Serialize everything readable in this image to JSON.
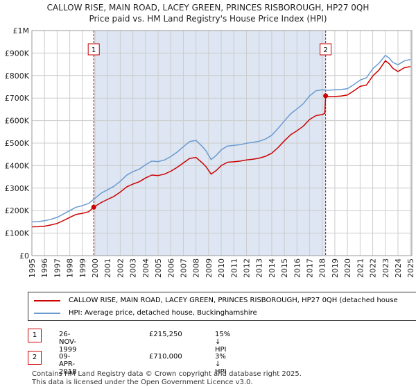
{
  "title_line1": "CALLOW RISE, MAIN ROAD, LACEY GREEN, PRINCES RISBOROUGH, HP27 0QH",
  "title_line2": "Price paid vs. HM Land Registry's House Price Index (HPI)",
  "colors": {
    "price_paid": "#cc0000",
    "hpi": "#6a9bd1",
    "shade": "#dde6f2",
    "marker_border": "#cc0000"
  },
  "legend": {
    "price_paid_label": "CALLOW RISE, MAIN ROAD, LACEY GREEN, PRINCES RISBOROUGH, HP27 0QH (detached house",
    "hpi_label": "HPI: Average price, detached house, Buckinghamshire"
  },
  "sales": [
    {
      "num": "1",
      "date": "26-NOV-1999",
      "price": "£215,250",
      "hpi_diff": "15% ↓ HPI"
    },
    {
      "num": "2",
      "date": "09-APR-2018",
      "price": "£710,000",
      "hpi_diff": "3% ↓ HPI"
    }
  ],
  "footer": {
    "line1": "Contains HM Land Registry data © Crown copyright and database right 2025.",
    "line2": "This data is licensed under the Open Government Licence v3.0."
  },
  "chart_data": {
    "type": "line",
    "title": "CALLOW RISE, MAIN ROAD, LACEY GREEN, PRINCES RISBOROUGH, HP27 0QH",
    "subtitle": "Price paid vs. HM Land Registry's House Price Index (HPI)",
    "xlabel": "",
    "ylabel": "",
    "xlim": [
      1995,
      2025.1
    ],
    "ylim": [
      0,
      1000000
    ],
    "y_ticks": [
      {
        "value": 0,
        "label": "£0"
      },
      {
        "value": 100000,
        "label": "£100K"
      },
      {
        "value": 200000,
        "label": "£200K"
      },
      {
        "value": 300000,
        "label": "£300K"
      },
      {
        "value": 400000,
        "label": "£400K"
      },
      {
        "value": 500000,
        "label": "£500K"
      },
      {
        "value": 600000,
        "label": "£600K"
      },
      {
        "value": 700000,
        "label": "£700K"
      },
      {
        "value": 800000,
        "label": "£800K"
      },
      {
        "value": 900000,
        "label": "£900K"
      },
      {
        "value": 1000000,
        "label": "£1M"
      }
    ],
    "x_ticks": [
      "1995",
      "1996",
      "1997",
      "1998",
      "1999",
      "2000",
      "2001",
      "2002",
      "2003",
      "2004",
      "2005",
      "2006",
      "2007",
      "2008",
      "2009",
      "2010",
      "2011",
      "2012",
      "2013",
      "2014",
      "2015",
      "2016",
      "2017",
      "2018",
      "2019",
      "2020",
      "2021",
      "2022",
      "2023",
      "2024",
      "2025"
    ],
    "grid": true,
    "sale_markers": [
      {
        "label": "1",
        "x": 1999.9,
        "y": 215250
      },
      {
        "label": "2",
        "x": 2018.27,
        "y": 710000
      }
    ],
    "shaded_ranges": [
      [
        1999.9,
        2018.27
      ]
    ],
    "series": [
      {
        "name": "CALLOW RISE, MAIN ROAD, LACEY GREEN, PRINCES RISBOROUGH, HP27 0QH (detached house)",
        "color": "#cc0000",
        "x": [
          1995.0,
          1995.5,
          1996.0,
          1996.5,
          1997.0,
          1997.5,
          1998.0,
          1998.5,
          1999.0,
          1999.5,
          1999.9,
          2000.5,
          2001.0,
          2001.5,
          2002.0,
          2002.5,
          2003.0,
          2003.5,
          2004.0,
          2004.5,
          2005.0,
          2005.5,
          2006.0,
          2006.5,
          2007.0,
          2007.5,
          2008.0,
          2008.5,
          2008.8,
          2009.2,
          2009.6,
          2010.0,
          2010.5,
          2011.0,
          2011.5,
          2012.0,
          2012.5,
          2013.0,
          2013.5,
          2014.0,
          2014.5,
          2015.0,
          2015.5,
          2016.0,
          2016.5,
          2017.0,
          2017.5,
          2018.0,
          2018.2,
          2018.27,
          2018.5,
          2019.0,
          2019.5,
          2020.0,
          2020.5,
          2021.0,
          2021.5,
          2022.0,
          2022.5,
          2023.0,
          2023.3,
          2023.6,
          2024.0,
          2024.5,
          2025.0
        ],
        "values": [
          128000,
          128500,
          131000,
          136000,
          143000,
          156000,
          170000,
          183000,
          188000,
          195000,
          215250,
          236000,
          250000,
          263000,
          282000,
          305000,
          318000,
          328000,
          345000,
          358000,
          356000,
          362000,
          375000,
          392000,
          412000,
          432000,
          436000,
          412000,
          395000,
          362000,
          378000,
          400000,
          415000,
          417000,
          420000,
          425000,
          428000,
          433000,
          441000,
          455000,
          480000,
          510000,
          537000,
          555000,
          575000,
          605000,
          622000,
          627000,
          632000,
          710000,
          706000,
          707000,
          709000,
          714000,
          732000,
          752000,
          758000,
          798000,
          825000,
          866000,
          853000,
          832000,
          818000,
          835000,
          840000
        ]
      },
      {
        "name": "HPI: Average price, detached house, Buckinghamshire",
        "color": "#6a9bd1",
        "x": [
          1995.0,
          1995.5,
          1996.0,
          1996.5,
          1997.0,
          1997.5,
          1998.0,
          1998.5,
          1999.0,
          1999.5,
          2000.0,
          2000.5,
          2001.0,
          2001.5,
          2002.0,
          2002.5,
          2003.0,
          2003.5,
          2004.0,
          2004.5,
          2005.0,
          2005.5,
          2006.0,
          2006.5,
          2007.0,
          2007.5,
          2008.0,
          2008.5,
          2008.8,
          2009.2,
          2009.6,
          2010.0,
          2010.5,
          2011.0,
          2011.5,
          2012.0,
          2012.5,
          2013.0,
          2013.5,
          2014.0,
          2014.5,
          2015.0,
          2015.5,
          2016.0,
          2016.5,
          2017.0,
          2017.5,
          2018.0,
          2018.5,
          2019.0,
          2019.5,
          2020.0,
          2020.5,
          2021.0,
          2021.5,
          2022.0,
          2022.5,
          2023.0,
          2023.3,
          2023.6,
          2024.0,
          2024.5,
          2025.0
        ],
        "values": [
          150000,
          151000,
          155000,
          161000,
          170000,
          185000,
          200000,
          215000,
          222000,
          232000,
          255000,
          278000,
          293000,
          308000,
          330000,
          357000,
          373000,
          384000,
          404000,
          420000,
          418000,
          425000,
          440000,
          460000,
          484000,
          507000,
          512000,
          485000,
          465000,
          427000,
          445000,
          470000,
          487000,
          490000,
          493000,
          499000,
          503000,
          508000,
          518000,
          535000,
          565000,
          598000,
          630000,
          652000,
          675000,
          710000,
          732000,
          737000,
          735000,
          737000,
          738000,
          742000,
          760000,
          780000,
          790000,
          830000,
          855000,
          890000,
          878000,
          858000,
          848000,
          865000,
          872000
        ]
      }
    ]
  }
}
